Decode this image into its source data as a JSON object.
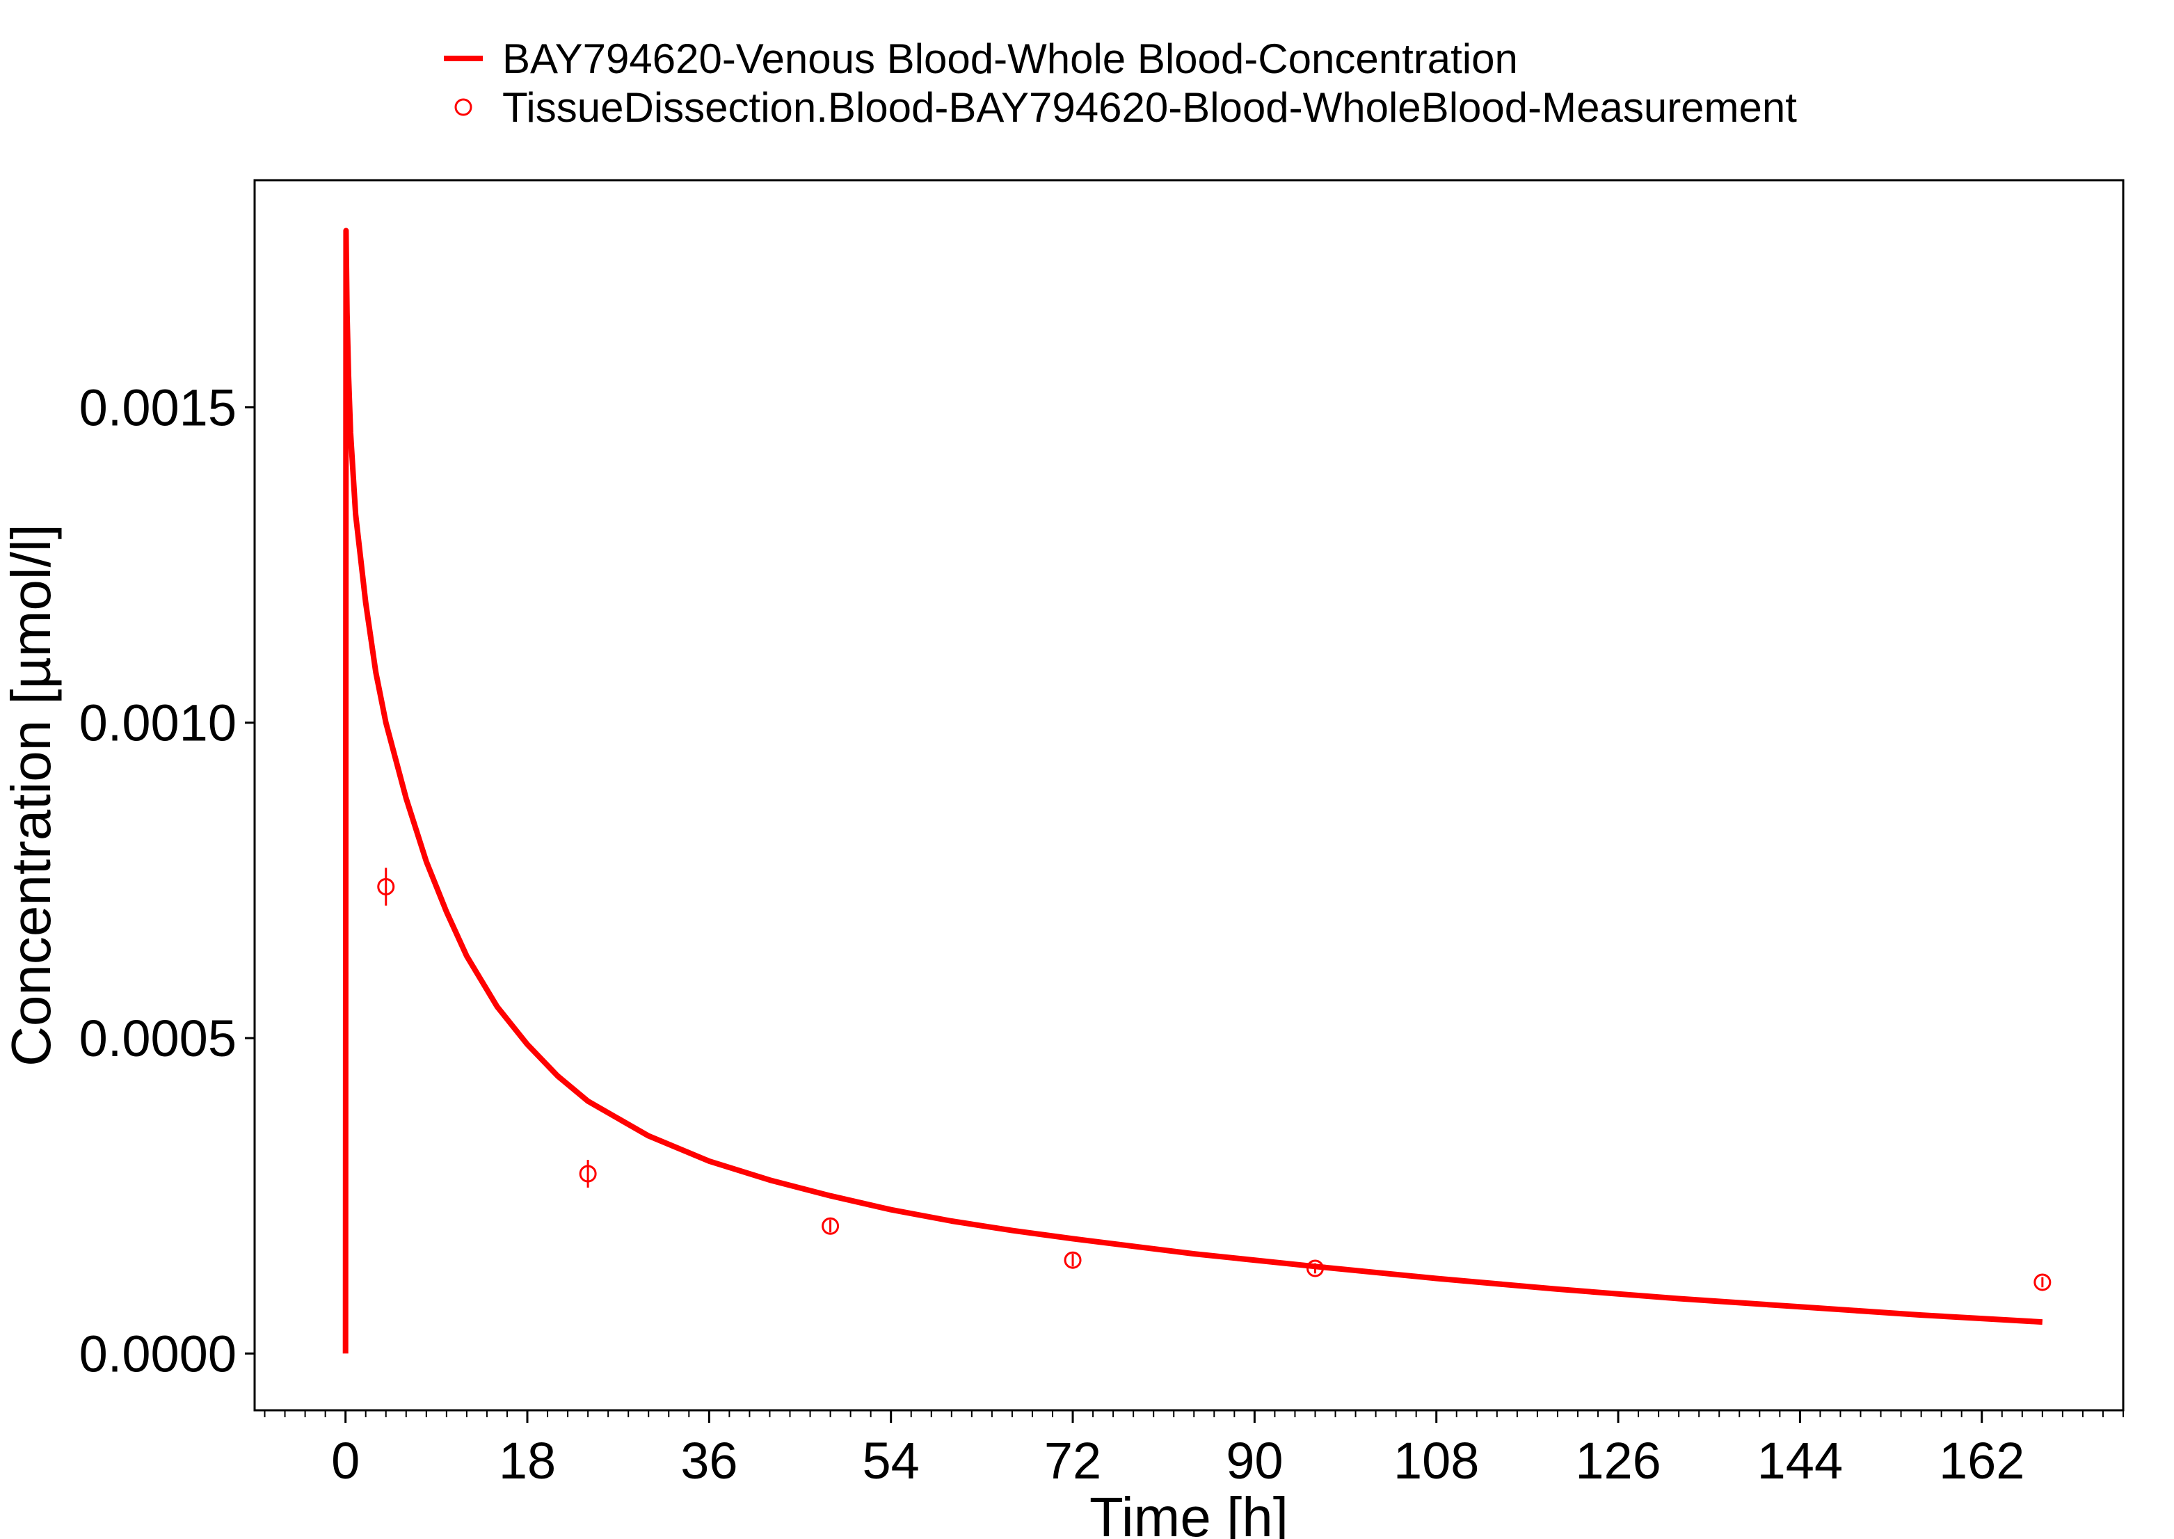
{
  "chart_data": {
    "type": "line",
    "title": "",
    "xlabel": "Time [h]",
    "ylabel": "Concentration [µmol/l]",
    "xlim": [
      -9,
      176
    ],
    "ylim": [
      -9e-05,
      0.00186
    ],
    "x_ticks": [
      0,
      18,
      36,
      54,
      72,
      90,
      108,
      126,
      144,
      162
    ],
    "x_tick_labels": [
      "0",
      "18",
      "36",
      "54",
      "72",
      "90",
      "108",
      "126",
      "144",
      "162"
    ],
    "x_minor_step": 2,
    "y_ticks": [
      0.0,
      0.0005,
      0.001,
      0.0015
    ],
    "y_tick_labels": [
      "0.0000",
      "0.0005",
      "0.0010",
      "0.0015"
    ],
    "grid": false,
    "legend_position": "top",
    "color": "#ff0000",
    "series": [
      {
        "name": "BAY794620-Venous Blood-Whole Blood-Concentration",
        "kind": "line",
        "x": [
          0,
          0.05,
          0.15,
          0.3,
          0.5,
          1,
          2,
          3,
          4,
          6,
          8,
          10,
          12,
          15,
          18,
          21,
          24,
          30,
          36,
          42,
          48,
          54,
          60,
          66,
          72,
          84,
          96,
          108,
          120,
          132,
          144,
          156,
          168
        ],
        "y": [
          0.0,
          0.00178,
          0.00165,
          0.00155,
          0.00146,
          0.00133,
          0.00119,
          0.00108,
          0.001,
          0.00088,
          0.00078,
          0.0007,
          0.00063,
          0.00055,
          0.00049,
          0.00044,
          0.0004,
          0.000345,
          0.000305,
          0.000275,
          0.00025,
          0.000228,
          0.00021,
          0.000195,
          0.000182,
          0.000158,
          0.000138,
          0.000119,
          0.000102,
          8.7e-05,
          7.4e-05,
          6.1e-05,
          5e-05
        ]
      },
      {
        "name": "TissueDissection.Blood-BAY794620-Blood-WholeBlood-Measurement",
        "kind": "scatter",
        "x": [
          4,
          24,
          48,
          72,
          96,
          168
        ],
        "y": [
          0.00074,
          0.000285,
          0.000202,
          0.000148,
          0.000135,
          0.000113
        ],
        "err": [
          3e-05,
          2.2e-05,
          1e-05,
          1e-05,
          8e-06,
          8e-06
        ]
      }
    ]
  }
}
